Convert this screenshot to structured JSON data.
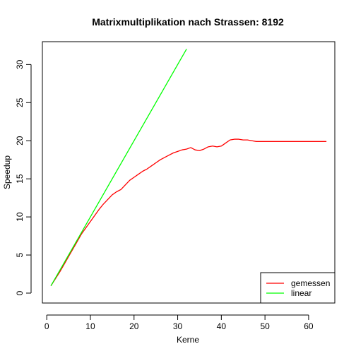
{
  "chart_data": {
    "type": "line",
    "title": "Matrixmultiplikation nach Strassen: 8192",
    "xlabel": "Kerne",
    "ylabel": "Speedup",
    "xlim": [
      -1,
      66
    ],
    "ylim": [
      -1.3,
      33
    ],
    "xticks": [
      "0",
      "10",
      "20",
      "30",
      "40",
      "50",
      "60"
    ],
    "yticks": [
      "0",
      "5",
      "10",
      "15",
      "20",
      "25",
      "30"
    ],
    "grid": false,
    "legend": "bottom-right",
    "series": [
      {
        "name": "gemessen",
        "color": "#ff0000",
        "x": [
          1,
          2,
          3,
          4,
          5,
          6,
          7,
          8,
          9,
          10,
          11,
          12,
          13,
          14,
          15,
          16,
          17,
          18,
          19,
          20,
          21,
          22,
          23,
          24,
          25,
          26,
          27,
          28,
          29,
          30,
          31,
          32,
          33,
          34,
          35,
          36,
          37,
          38,
          39,
          40,
          41,
          42,
          43,
          44,
          45,
          46,
          47,
          48,
          49,
          50,
          51,
          52,
          53,
          54,
          55,
          56,
          57,
          58,
          59,
          60,
          61,
          62,
          63,
          64
        ],
        "y": [
          1.0,
          1.9,
          2.8,
          3.8,
          4.8,
          5.8,
          6.8,
          7.8,
          8.6,
          9.4,
          10.2,
          11.0,
          11.7,
          12.3,
          12.9,
          13.3,
          13.6,
          14.2,
          14.8,
          15.2,
          15.6,
          16.0,
          16.3,
          16.7,
          17.1,
          17.5,
          17.8,
          18.1,
          18.4,
          18.6,
          18.8,
          18.9,
          19.1,
          18.8,
          18.7,
          18.9,
          19.2,
          19.3,
          19.2,
          19.3,
          19.7,
          20.1,
          20.2,
          20.2,
          20.1,
          20.1,
          20.0,
          19.9,
          19.9,
          19.9,
          19.9,
          19.9,
          19.9,
          19.9,
          19.9,
          19.9,
          19.9,
          19.9,
          19.9,
          19.9,
          19.9,
          19.9,
          19.9,
          19.9
        ]
      },
      {
        "name": "linear",
        "color": "#00ff00",
        "x": [
          1,
          32
        ],
        "y": [
          1,
          32
        ]
      }
    ]
  }
}
